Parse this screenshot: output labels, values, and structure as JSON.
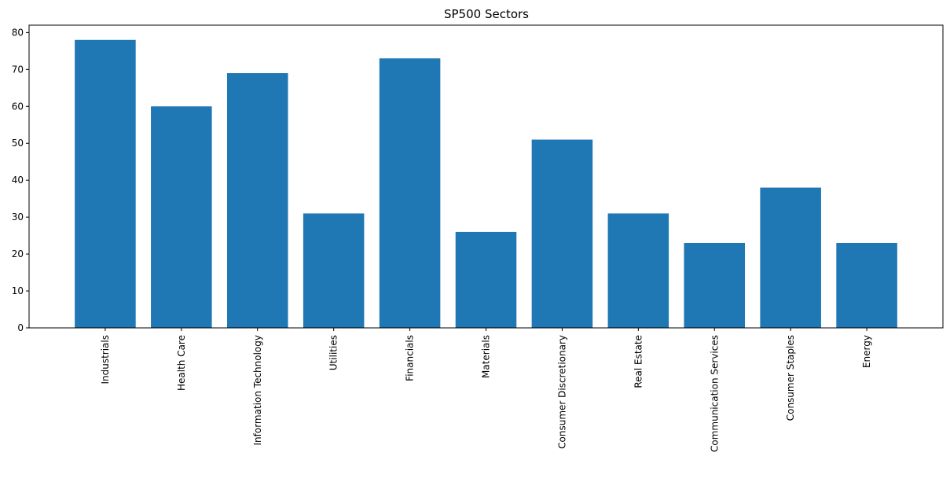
{
  "chart_data": {
    "type": "bar",
    "title": "SP500 Sectors",
    "xlabel": "",
    "ylabel": "",
    "categories": [
      "Industrials",
      "Health Care",
      "Information Technology",
      "Utilities",
      "Financials",
      "Materials",
      "Consumer Discretionary",
      "Real Estate",
      "Communication Services",
      "Consumer Staples",
      "Energy"
    ],
    "values": [
      78,
      60,
      69,
      31,
      73,
      26,
      51,
      31,
      23,
      38,
      23
    ],
    "ylim": [
      0,
      82
    ],
    "yticks": [
      0,
      10,
      20,
      30,
      40,
      50,
      60,
      70,
      80
    ],
    "bar_color": "#1f77b4",
    "grid": false,
    "legend": "none"
  }
}
